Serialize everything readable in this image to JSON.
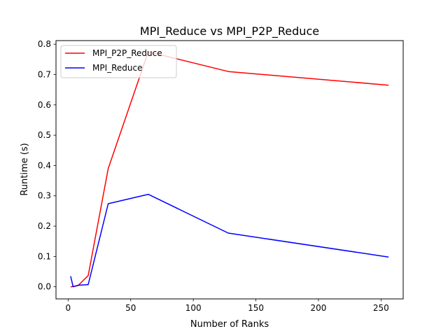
{
  "chart_data": {
    "type": "line",
    "title": "MPI_Reduce vs MPI_P2P_Reduce",
    "xlabel": "Number of Ranks",
    "ylabel": "Runtime (s)",
    "xlim": [
      -9.7,
      267.7
    ],
    "ylim": [
      -0.04,
      0.812
    ],
    "xticks": [
      0,
      50,
      100,
      150,
      200,
      250
    ],
    "xtick_labels": [
      "0",
      "50",
      "100",
      "150",
      "200",
      "250"
    ],
    "yticks": [
      0.0,
      0.1,
      0.2,
      0.3,
      0.4,
      0.5,
      0.6,
      0.7,
      0.8
    ],
    "ytick_labels": [
      "0.0",
      "0.1",
      "0.2",
      "0.3",
      "0.4",
      "0.5",
      "0.6",
      "0.7",
      "0.8"
    ],
    "grid": false,
    "legend_position": "top-left",
    "series": [
      {
        "name": "MPI_P2P_Reduce",
        "color": "#ff0000",
        "x": [
          2,
          4,
          8,
          16,
          32,
          64,
          128,
          256
        ],
        "y": [
          0.0,
          0.001,
          0.004,
          0.037,
          0.39,
          0.775,
          0.71,
          0.665
        ]
      },
      {
        "name": "MPI_Reduce",
        "color": "#0000ff",
        "x": [
          2,
          4,
          8,
          16,
          32,
          64,
          128,
          256
        ],
        "y": [
          0.035,
          0.0,
          0.005,
          0.007,
          0.274,
          0.305,
          0.177,
          0.098
        ]
      }
    ]
  }
}
